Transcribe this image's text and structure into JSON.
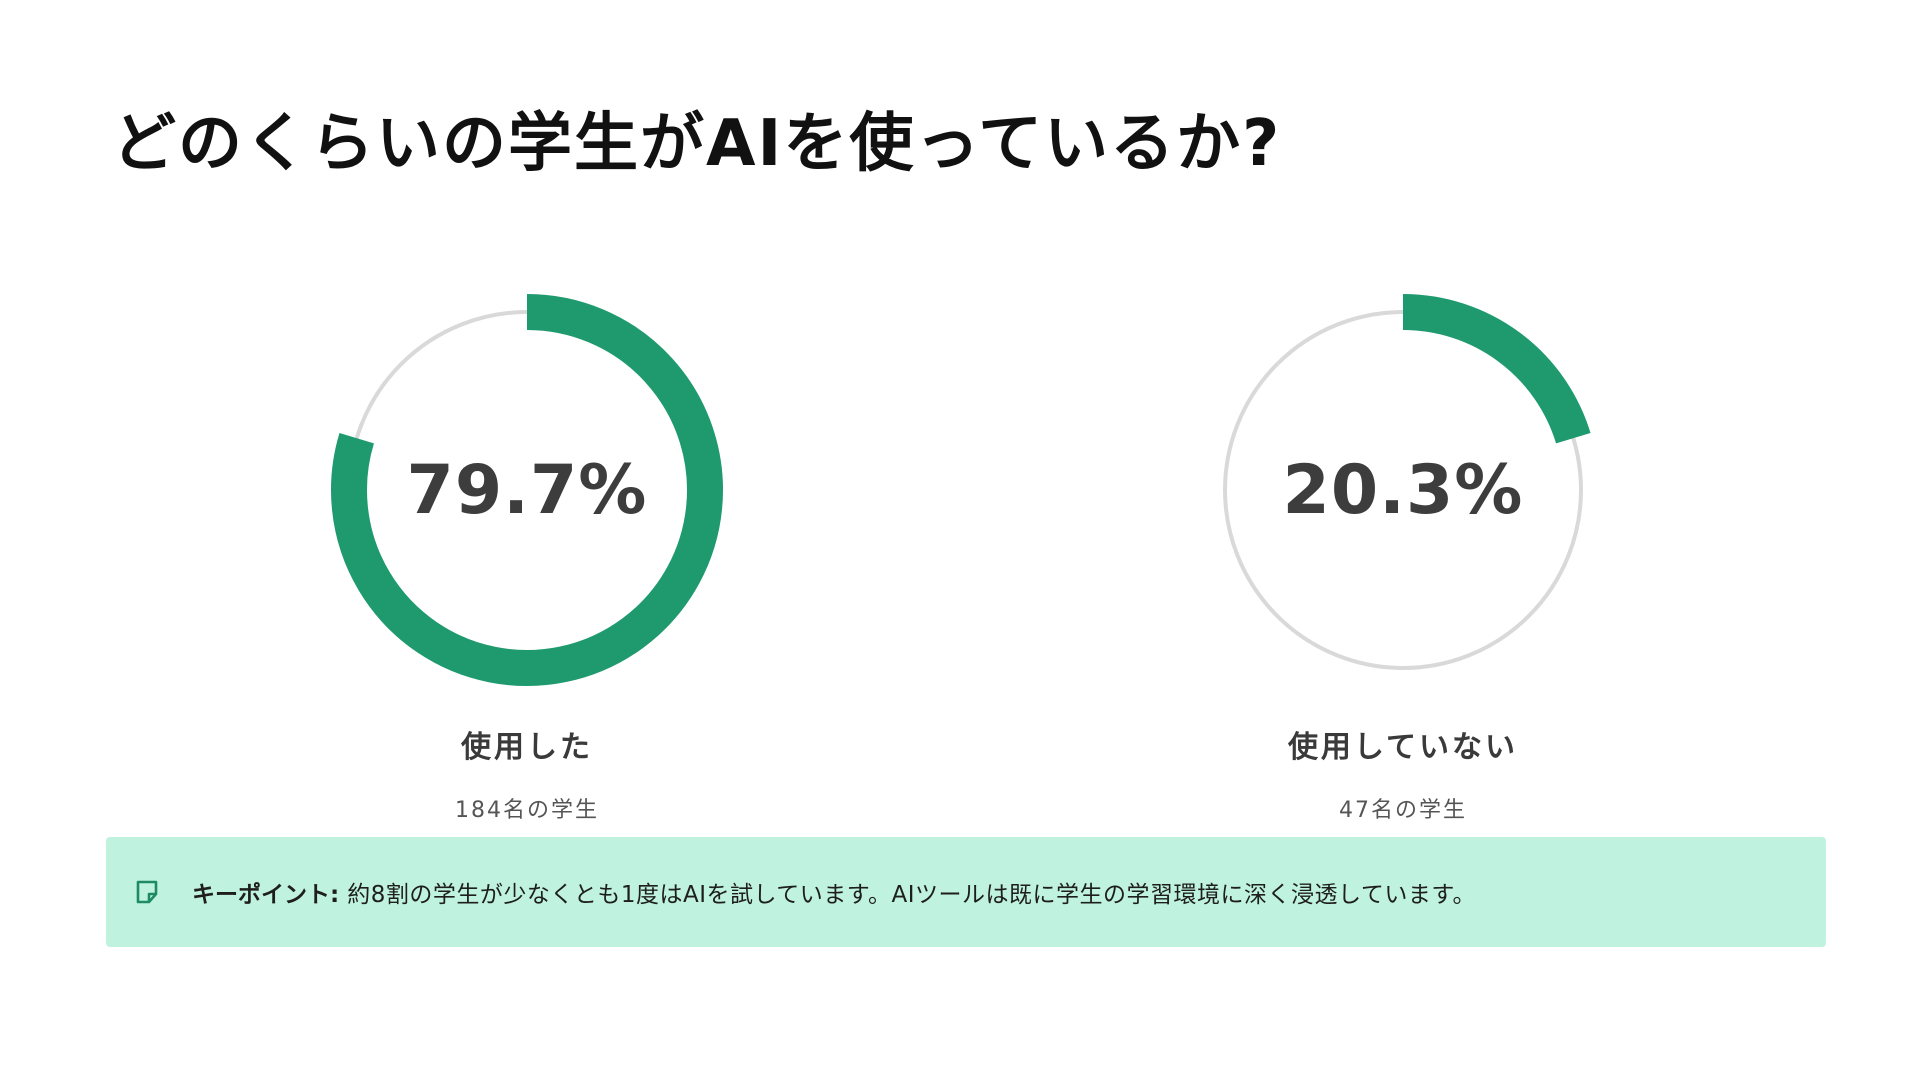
{
  "title": "どのくらいの学生がAIを使っているか?",
  "colors": {
    "accent": "#1f9a6f",
    "track": "#d9d9d9",
    "keypoint_bg": "#bff2df"
  },
  "chart_data": [
    {
      "type": "pie",
      "variant": "donut",
      "title": "",
      "value_label": "79.7%",
      "values": [
        79.7,
        20.3
      ],
      "highlight_value": 79.7,
      "label": "使用した",
      "sublabel": "184名の学生"
    },
    {
      "type": "pie",
      "variant": "donut",
      "title": "",
      "value_label": "20.3%",
      "values": [
        20.3,
        79.7
      ],
      "highlight_value": 20.3,
      "label": "使用していない",
      "sublabel": "47名の学生"
    }
  ],
  "keypoint": {
    "icon": "note-icon",
    "label": "キーポイント:",
    "text": "約8割の学生が少なくとも1度はAIを試しています。AIツールは既に学生の学習環境に深く浸透しています。"
  }
}
